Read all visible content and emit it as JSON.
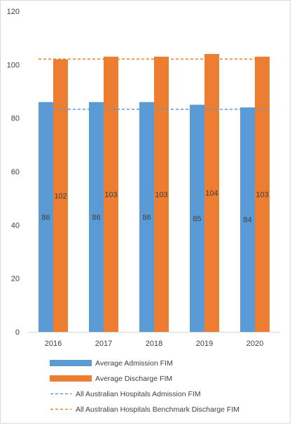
{
  "chart_data": {
    "type": "bar",
    "categories": [
      "2016",
      "2017",
      "2018",
      "2019",
      "2020"
    ],
    "series": [
      {
        "name": "Average Admission FIM",
        "kind": "bar",
        "values": [
          86,
          86,
          86,
          85,
          84
        ],
        "value_labels": [
          "86",
          "86",
          "86",
          "85",
          "84"
        ],
        "color": "#5b9bd5"
      },
      {
        "name": "Average Discharge FIM",
        "kind": "bar",
        "values": [
          102,
          103,
          103,
          104,
          103
        ],
        "value_labels": [
          "102",
          "103",
          "103",
          "104",
          "103"
        ],
        "color": "#ed7d31"
      },
      {
        "name": "All Australian Hospitals Admission FIM",
        "kind": "dashed-line",
        "value": 83.3,
        "color": "#5b9bd5"
      },
      {
        "name": "All Australian Hospitals Benchmark Discharge FIM",
        "kind": "dashed-line",
        "value": 102.1,
        "color": "#ed7d31"
      }
    ],
    "ylim": [
      0,
      120
    ],
    "yticks": [
      "0",
      "20",
      "40",
      "60",
      "80",
      "100",
      "120"
    ],
    "grid": false,
    "legend_position": "bottom"
  }
}
